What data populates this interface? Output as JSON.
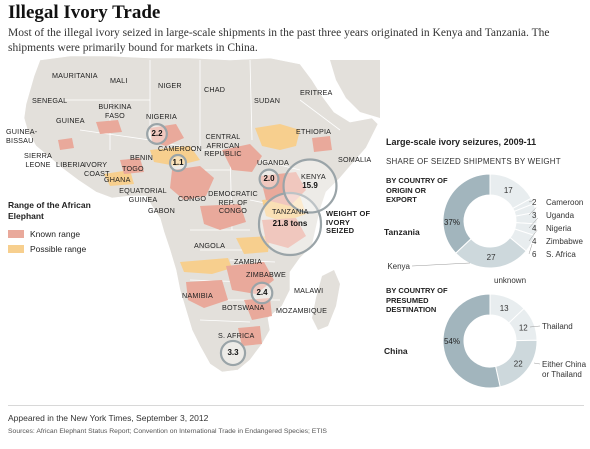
{
  "title": "Illegal Ivory Trade",
  "subtitle": "Most of the illegal ivory seized in large-scale shipments in the past three years originated in Kenya and Tanzania. The shipments were primarily bound for markets in China.",
  "colors": {
    "known_range": "#e9a99b",
    "possible_range": "#f7cf8e",
    "land": "#e3e0db",
    "sea": "#ffffff",
    "pie_dark": "#a2b5bd",
    "pie_mid": "#cdd8dc",
    "pie_light": "#e8edef",
    "bubble": "#9aa4a8"
  },
  "map": {
    "countries": [
      {
        "key": "mauritania",
        "label": "MAURITANIA"
      },
      {
        "key": "mali",
        "label": "MALI"
      },
      {
        "key": "niger",
        "label": "NIGER"
      },
      {
        "key": "chad",
        "label": "CHAD"
      },
      {
        "key": "sudan",
        "label": "SUDAN"
      },
      {
        "key": "eritrea",
        "label": "ERITREA"
      },
      {
        "key": "senegal",
        "label": "SENEGAL"
      },
      {
        "key": "burkina",
        "label": "BURKINA FASO"
      },
      {
        "key": "nigeria",
        "label": "NIGERIA"
      },
      {
        "key": "ethiopia",
        "label": "ETHIOPIA"
      },
      {
        "key": "guinea",
        "label": "GUINEA"
      },
      {
        "key": "guineabissau",
        "label": "GUINEA-BISSAU"
      },
      {
        "key": "cameroon",
        "label": "CAMEROON"
      },
      {
        "key": "car",
        "label": "CENTRAL AFRICAN REPUBLIC"
      },
      {
        "key": "somalia",
        "label": "SOMALIA"
      },
      {
        "key": "sierraleone",
        "label": "SIERRA LEONE"
      },
      {
        "key": "liberia",
        "label": "LIBERIA"
      },
      {
        "key": "ivorycoast",
        "label": "IVORY COAST"
      },
      {
        "key": "ghana",
        "label": "GHANA"
      },
      {
        "key": "togo",
        "label": "TOGO"
      },
      {
        "key": "benin",
        "label": "BENIN"
      },
      {
        "key": "uganda",
        "label": "UGANDA"
      },
      {
        "key": "kenya",
        "label": "KENYA"
      },
      {
        "key": "eqguinea",
        "label": "EQUATORIAL GUINEA"
      },
      {
        "key": "gabon",
        "label": "GABON"
      },
      {
        "key": "congo",
        "label": "CONGO"
      },
      {
        "key": "drc",
        "label": "DEMOCRATIC REP. OF CONGO"
      },
      {
        "key": "tanzania",
        "label": "TANZANIA"
      },
      {
        "key": "angola",
        "label": "ANGOLA"
      },
      {
        "key": "zambia",
        "label": "ZAMBIA"
      },
      {
        "key": "zimbabwe",
        "label": "ZIMBABWE"
      },
      {
        "key": "malawi",
        "label": "MALAWI"
      },
      {
        "key": "namibia",
        "label": "NAMIBIA"
      },
      {
        "key": "botswana",
        "label": "BOTSWANA"
      },
      {
        "key": "mozambique",
        "label": "MOZAMBIQUE"
      },
      {
        "key": "safrica",
        "label": "S. AFRICA"
      }
    ],
    "weight_label": "WEIGHT OF IVORY SEIZED"
  },
  "chart_data": [
    {
      "type": "bubble-map",
      "title": "",
      "unit": "tons",
      "points": [
        {
          "country": "Tanzania",
          "value": 21.8,
          "label": "21.8 tons"
        },
        {
          "country": "Kenya",
          "value": 15.9,
          "label": "15.9"
        },
        {
          "country": "S. Africa",
          "value": 3.3,
          "label": "3.3"
        },
        {
          "country": "Zimbabwe",
          "value": 2.4,
          "label": "2.4"
        },
        {
          "country": "Nigeria",
          "value": 2.2,
          "label": "2.2"
        },
        {
          "country": "Uganda",
          "value": 2.0,
          "label": "2.0"
        },
        {
          "country": "Cameroon",
          "value": 1.1,
          "label": "1.1"
        }
      ],
      "legend": {
        "title": "Range of the African Elephant",
        "entries": [
          {
            "label": "Known range",
            "color": "#e9a99b"
          },
          {
            "label": "Possible range",
            "color": "#f7cf8e"
          }
        ]
      }
    },
    {
      "type": "pie",
      "title": "Large-scale ivory seizures, 2009-11",
      "subtitle": "SHARE OF SEIZED SHIPMENTS BY WEIGHT",
      "section": "BY COUNTRY OF ORIGIN OR EXPORT",
      "unit": "%",
      "slices": [
        {
          "name": "Tanzania",
          "value": 37,
          "label": "37%"
        },
        {
          "name": "unknown",
          "value": 17,
          "label": "17"
        },
        {
          "name": "Cameroon",
          "value": 2,
          "label": "2"
        },
        {
          "name": "Uganda",
          "value": 3,
          "label": "3"
        },
        {
          "name": "Nigeria",
          "value": 4,
          "label": "4"
        },
        {
          "name": "Zimbabwe",
          "value": 4,
          "label": "4"
        },
        {
          "name": "S. Africa",
          "value": 6,
          "label": "6"
        },
        {
          "name": "Kenya",
          "value": 27,
          "label": "27"
        }
      ]
    },
    {
      "type": "pie",
      "title": "",
      "section": "BY COUNTRY OF PRESUMED DESTINATION",
      "unit": "%",
      "slices": [
        {
          "name": "China",
          "value": 54,
          "label": "54%"
        },
        {
          "name": "unknown",
          "value": 13,
          "label": "13"
        },
        {
          "name": "Thailand",
          "value": 12,
          "label": "12"
        },
        {
          "name": "Either China or Thailand",
          "value": 22,
          "label": "22"
        }
      ]
    }
  ],
  "footer": {
    "appeared": "Appeared in the New York Times, September 3, 2012",
    "sources": "Sources: African Elephant Status Report; Convention on International Trade in Endangered Species; ETIS"
  }
}
